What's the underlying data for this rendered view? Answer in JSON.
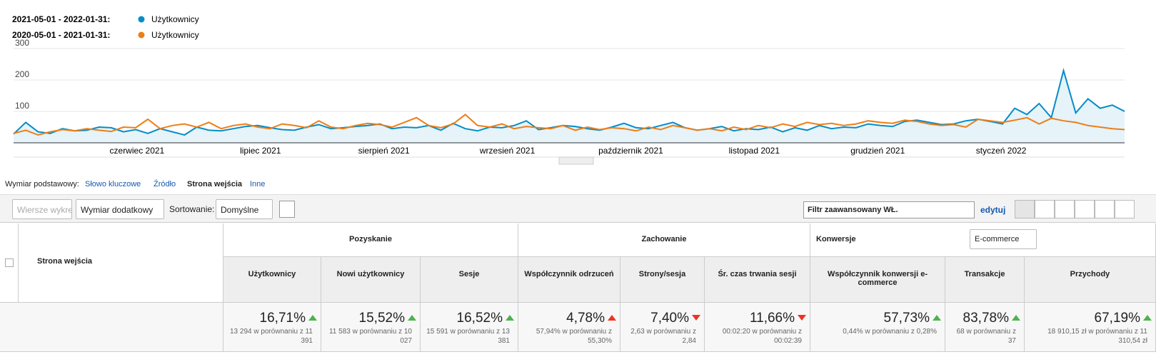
{
  "legend": [
    {
      "period": "2021-05-01 - 2022-01-31:",
      "label": "Użytkownicy"
    },
    {
      "period": "2020-05-01 - 2021-01-31:",
      "label": "Użytkownicy"
    }
  ],
  "chart_data": {
    "type": "line",
    "x_labels": [
      "czerwiec 2021",
      "lipiec 2021",
      "sierpień 2021",
      "wrzesień 2021",
      "październik 2021",
      "listopad 2021",
      "grudzień 2021",
      "styczeń 2022"
    ],
    "ylim": [
      0,
      300
    ],
    "yticks": [
      100,
      200,
      300
    ],
    "grid": true,
    "series": [
      {
        "name": "2021-05-01 - 2022-01-31",
        "color": "#058dc7",
        "values": [
          28,
          65,
          35,
          30,
          45,
          38,
          40,
          50,
          48,
          35,
          42,
          30,
          45,
          35,
          25,
          50,
          40,
          38,
          45,
          52,
          55,
          48,
          42,
          40,
          50,
          58,
          45,
          48,
          52,
          55,
          60,
          45,
          50,
          48,
          55,
          40,
          62,
          45,
          38,
          50,
          48,
          55,
          70,
          42,
          48,
          55,
          52,
          45,
          40,
          50,
          62,
          48,
          45,
          55,
          65,
          48,
          40,
          45,
          52,
          38,
          45,
          42,
          50,
          35,
          48,
          40,
          55,
          45,
          50,
          48,
          60,
          55,
          52,
          68,
          72,
          65,
          58,
          60,
          70,
          75,
          68,
          60,
          110,
          90,
          125,
          80,
          230,
          95,
          140,
          110,
          120,
          100
        ]
      },
      {
        "name": "2020-05-01 - 2021-01-31",
        "color": "#ed7e17",
        "values": [
          30,
          40,
          25,
          35,
          42,
          38,
          45,
          40,
          36,
          50,
          48,
          75,
          45,
          55,
          60,
          50,
          65,
          45,
          55,
          60,
          50,
          45,
          60,
          55,
          48,
          70,
          50,
          45,
          55,
          62,
          58,
          50,
          65,
          80,
          55,
          48,
          60,
          90,
          55,
          50,
          60,
          45,
          52,
          48,
          45,
          55,
          40,
          50,
          42,
          48,
          45,
          38,
          50,
          42,
          55,
          48,
          40,
          45,
          38,
          50,
          42,
          55,
          48,
          60,
          52,
          65,
          58,
          62,
          55,
          60,
          70,
          65,
          62,
          72,
          68,
          60,
          55,
          58,
          50,
          75,
          70,
          65,
          72,
          80,
          60,
          78,
          70,
          65,
          55,
          50,
          45,
          42
        ]
      }
    ]
  },
  "dimension_bar": {
    "label": "Wymiar podstawowy:",
    "options": [
      "Słowo kluczowe",
      "Źródło",
      "Strona wejścia",
      "Inne"
    ],
    "active": 2
  },
  "toolbar": {
    "plot_rows": "Wiersze wykresu",
    "secondary": "Wymiar dodatkowy",
    "sort_label": "Sortowanie:",
    "sort_value": "Domyślne",
    "filter": "Filtr zaawansowany WŁ.",
    "edit": "edytuj"
  },
  "table": {
    "dimension": "Strona wejścia",
    "groups": [
      {
        "name": "Pozyskanie",
        "span": 3
      },
      {
        "name": "Zachowanie",
        "span": 3
      },
      {
        "name": "Konwersje",
        "span": 3,
        "select": "E-commerce"
      }
    ],
    "columns": [
      {
        "name": "Użytkownicy",
        "change": "16,71%",
        "trend": "up",
        "good": true,
        "detail": "13 294 w porównaniu z 11 391"
      },
      {
        "name": "Nowi użytkownicy",
        "change": "15,52%",
        "trend": "up",
        "good": true,
        "detail": "11 583 w porównaniu z 10 027"
      },
      {
        "name": "Sesje",
        "change": "16,52%",
        "trend": "up",
        "good": true,
        "detail": "15 591 w porównaniu z 13 381"
      },
      {
        "name": "Współczynnik odrzuceń",
        "change": "4,78%",
        "trend": "up",
        "good": false,
        "detail": "57,94% w porównaniu z 55,30%"
      },
      {
        "name": "Strony/sesja",
        "change": "7,40%",
        "trend": "down",
        "good": false,
        "detail": "2,63 w porównaniu z 2,84"
      },
      {
        "name": "Śr. czas trwania sesji",
        "change": "11,66%",
        "trend": "down",
        "good": false,
        "detail": "00:02:20 w porównaniu z 00:02:39"
      },
      {
        "name": "Współczynnik konwersji e-commerce",
        "change": "57,73%",
        "trend": "up",
        "good": true,
        "detail": "0,44% w porównaniu z 0,28%"
      },
      {
        "name": "Transakcje",
        "change": "83,78%",
        "trend": "up",
        "good": true,
        "detail": "68 w porównaniu z 37"
      },
      {
        "name": "Przychody",
        "change": "67,19%",
        "trend": "up",
        "good": true,
        "detail": "18 910,15 zł w porównaniu z 11 310,54 zł"
      }
    ]
  }
}
